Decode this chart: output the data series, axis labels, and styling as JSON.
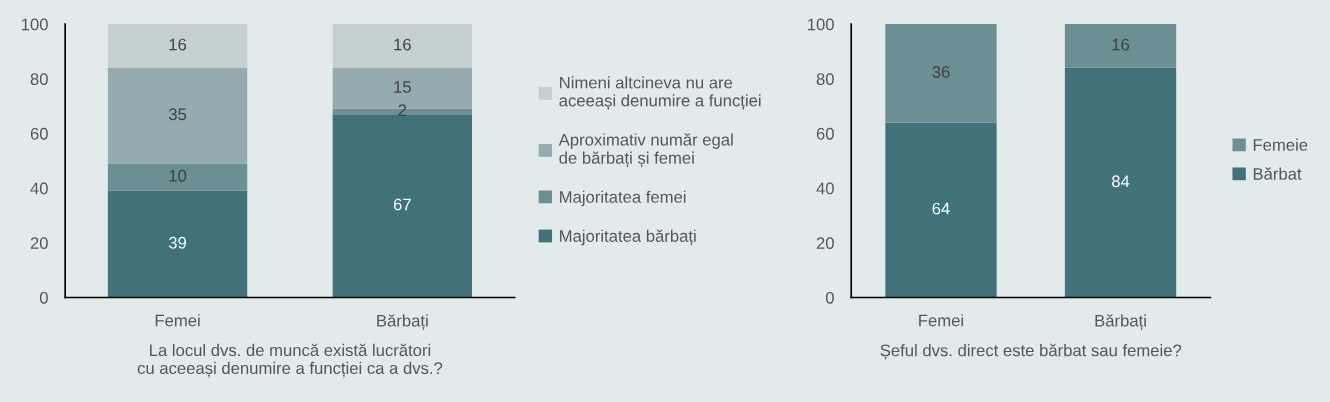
{
  "chart_data": [
    {
      "type": "bar",
      "stacked": true,
      "categories": [
        "Femei",
        "Bărbați"
      ],
      "xlabel": "La locul dvs. de muncă există lucrători cu aceeași denumire a funcției ca a dvs.?",
      "ylim": [
        0,
        100
      ],
      "yticks": [
        0,
        20,
        40,
        60,
        80,
        100
      ],
      "grid": false,
      "legend": "right",
      "data_labels": true,
      "series": [
        {
          "name": "Majoritatea bărbați",
          "color": "#41727a",
          "values": [
            39,
            67
          ]
        },
        {
          "name": "Majoritatea femei",
          "color": "#6b8f93",
          "values": [
            10,
            2
          ]
        },
        {
          "name": "Aproximativ număr egal de bărbați și femei",
          "color": "#95abaf",
          "values": [
            35,
            15
          ]
        },
        {
          "name": "Nimeni altcineva nu are aceeași denumire a funcției",
          "color": "#c4cfd0",
          "values": [
            16,
            16
          ]
        }
      ]
    },
    {
      "type": "bar",
      "stacked": true,
      "categories": [
        "Femei",
        "Bărbați"
      ],
      "xlabel": "Șeful dvs. direct este bărbat sau femeie?",
      "ylim": [
        0,
        100
      ],
      "yticks": [
        0,
        20,
        40,
        60,
        80,
        100
      ],
      "grid": false,
      "legend": "right",
      "data_labels": true,
      "series": [
        {
          "name": "Bărbat",
          "color": "#41727a",
          "values": [
            64,
            84
          ]
        },
        {
          "name": "Femeie",
          "color": "#6b8f93",
          "values": [
            36,
            16
          ]
        }
      ]
    }
  ]
}
